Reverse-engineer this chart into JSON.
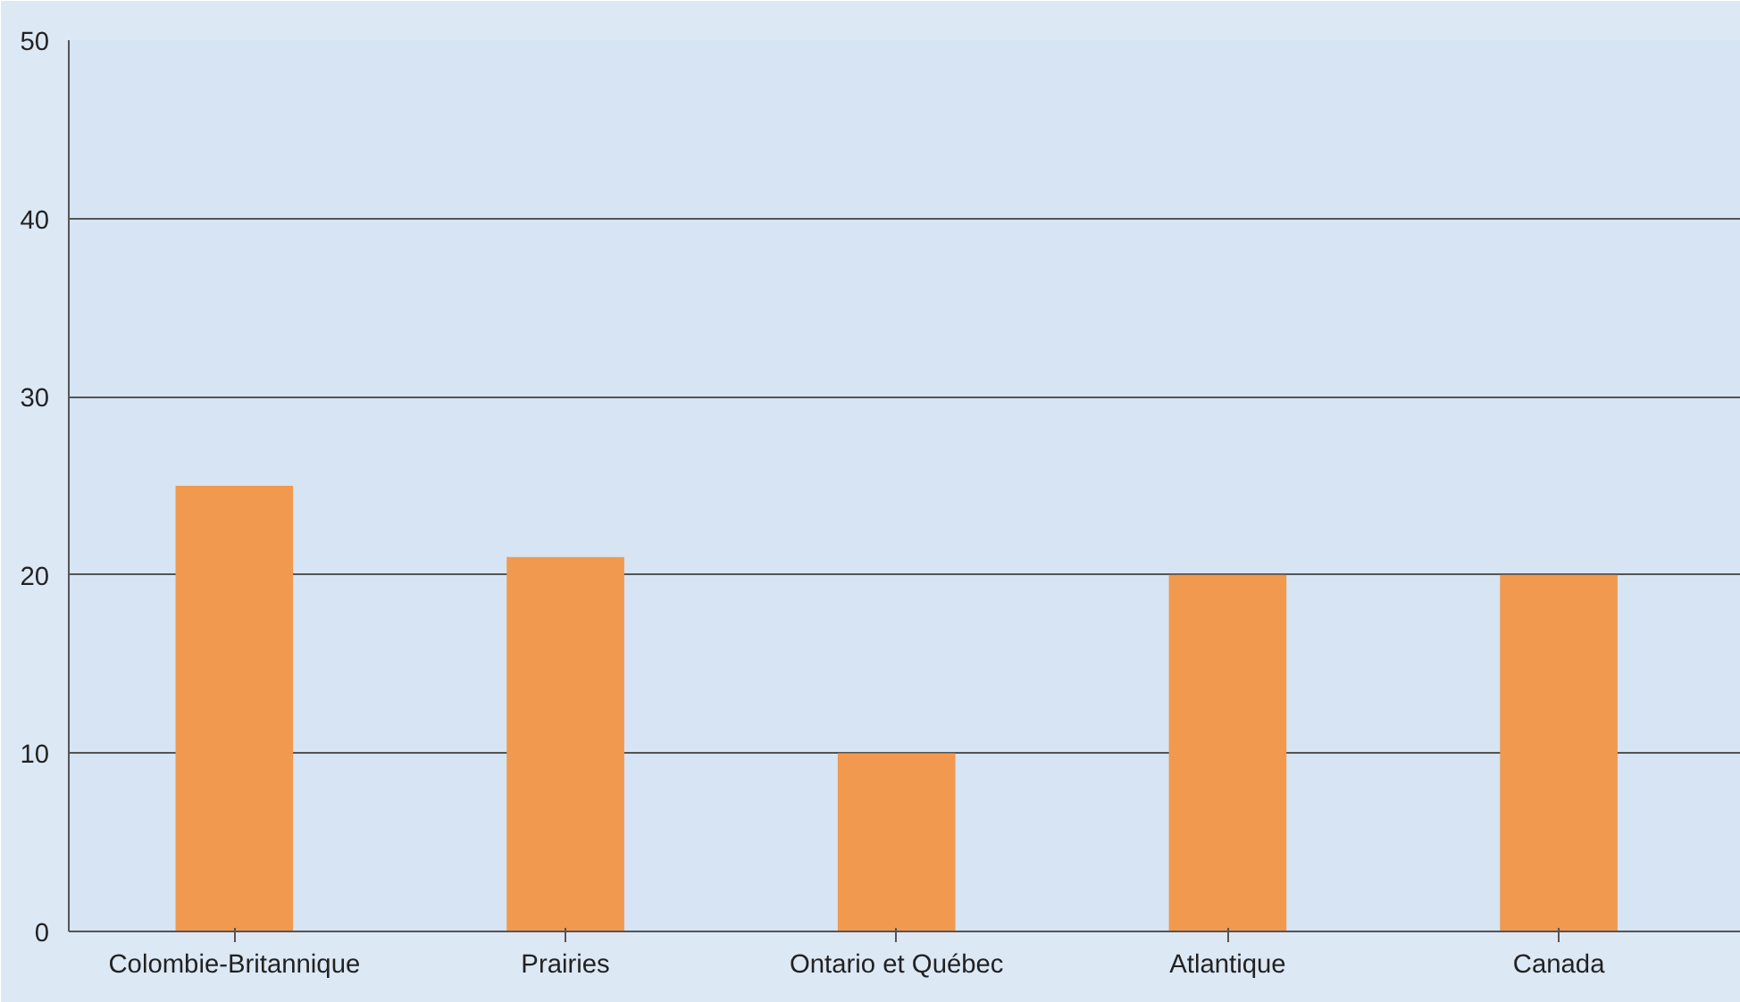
{
  "chart_data": {
    "type": "bar",
    "categories": [
      "Colombie-Britannique",
      "Prairies",
      "Ontario et Québec",
      "Atlantique",
      "Canada"
    ],
    "values": [
      25,
      21,
      10,
      20,
      20
    ],
    "color": "#f0994f",
    "ylim": [
      0,
      50
    ],
    "yticks": [
      0,
      10,
      20,
      30,
      40,
      50
    ],
    "grid": "y"
  }
}
